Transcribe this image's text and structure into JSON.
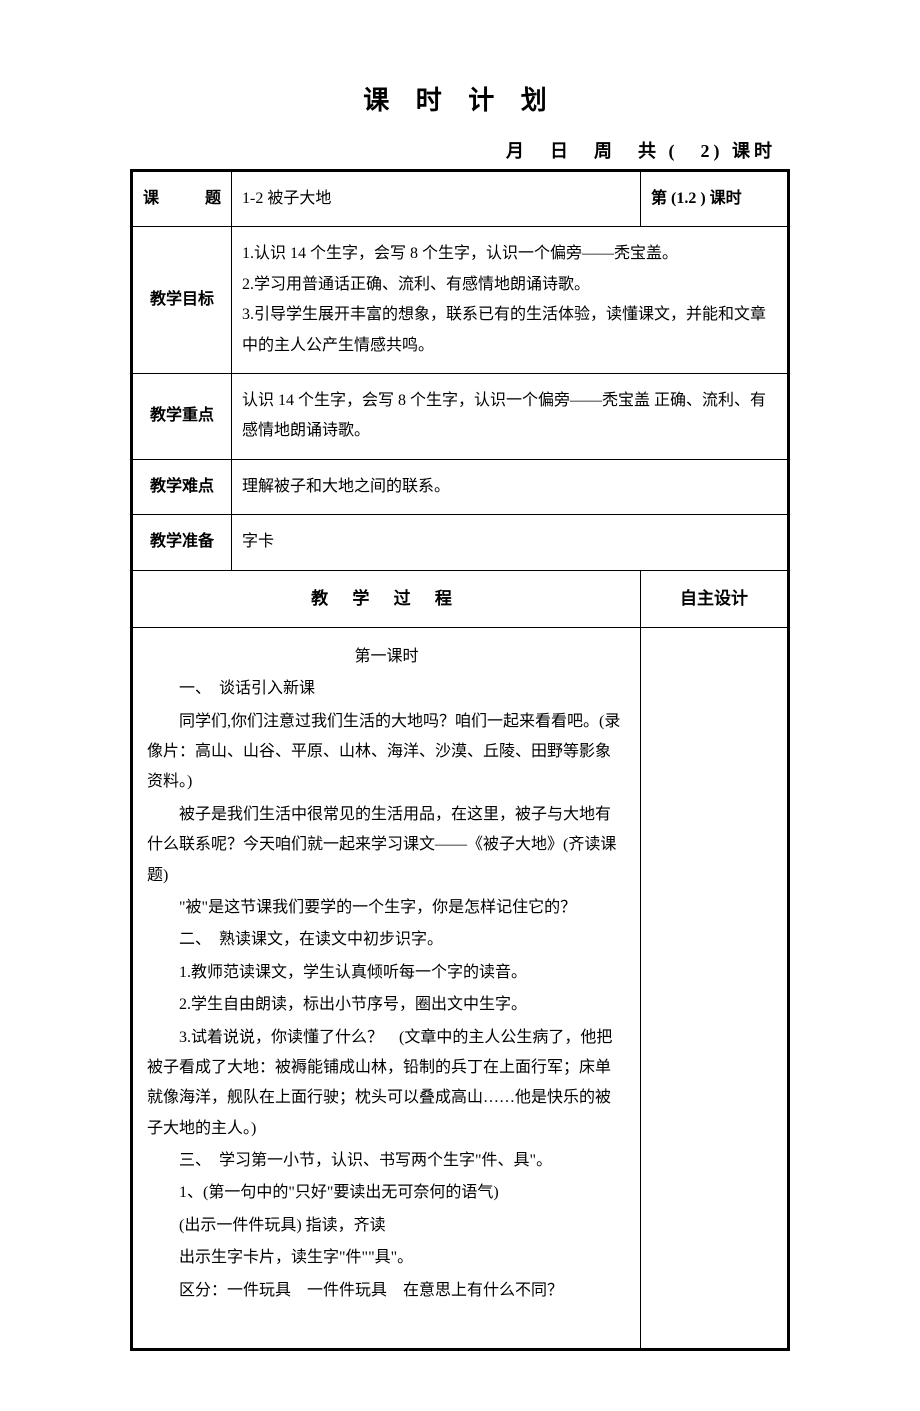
{
  "page": {
    "title": "课 时 计 划",
    "subtitle": "月　日　周　共 (　2) 课时"
  },
  "rows": {
    "topic": {
      "label": "课　　题",
      "value": "1-2 被子大地",
      "period": "第 (1.2 ) 课时"
    },
    "objective": {
      "label": "教学目标",
      "line1": "1.认识 14 个生字，会写 8 个生字，认识一个偏旁——秃宝盖。",
      "line2": "2.学习用普通话正确、流利、有感情地朗诵诗歌。",
      "line3": "3.引导学生展开丰富的想象，联系已有的生活体验，读懂课文，并能和文章中的主人公产生情感共鸣。"
    },
    "emphasis": {
      "label": "教学重点",
      "value": "认识 14 个生字，会写 8 个生字，认识一个偏旁——秃宝盖 正确、流利、有感情地朗诵诗歌。"
    },
    "difficulty": {
      "label": "教学难点",
      "value": "理解被子和大地之间的联系。"
    },
    "preparation": {
      "label": "教学准备",
      "value": "字卡"
    },
    "process_header": "教 学 过 程",
    "self_design": "自主设计",
    "lesson_heading": "第一课时",
    "content": {
      "p1": "一、　谈话引入新课",
      "p2": "同学们,你们注意过我们生活的大地吗？咱们一起来看看吧。(录像片：高山、山谷、平原、山林、海洋、沙漠、丘陵、田野等影象资料。)",
      "p3": "被子是我们生活中很常见的生活用品，在这里，被子与大地有什么联系呢？今天咱们就一起来学习课文——《被子大地》(齐读课题)",
      "p4": "\"被\"是这节课我们要学的一个生字，你是怎样记住它的？",
      "p5": "二、　熟读课文，在读文中初步识字。",
      "p6": "1.教师范读课文，学生认真倾听每一个字的读音。",
      "p7": "2.学生自由朗读，标出小节序号，圈出文中生字。",
      "p8": "3.试着说说，你读懂了什么？　(文章中的主人公生病了，他把被子看成了大地：被褥能铺成山林，铅制的兵丁在上面行军；床单就像海洋，舰队在上面行驶；枕头可以叠成高山……他是快乐的被子大地的主人。)",
      "p9": "三、　学习第一小节，认识、书写两个生字\"件、具\"。",
      "p10": "1、(第一句中的\"只好\"要读出无可奈何的语气)",
      "p11": "(出示一件件玩具) 指读，齐读",
      "p12": "出示生字卡片，读生字\"件\"\"具\"。",
      "p13": "区分：一件玩具　一件件玩具　在意思上有什么不同？"
    }
  }
}
